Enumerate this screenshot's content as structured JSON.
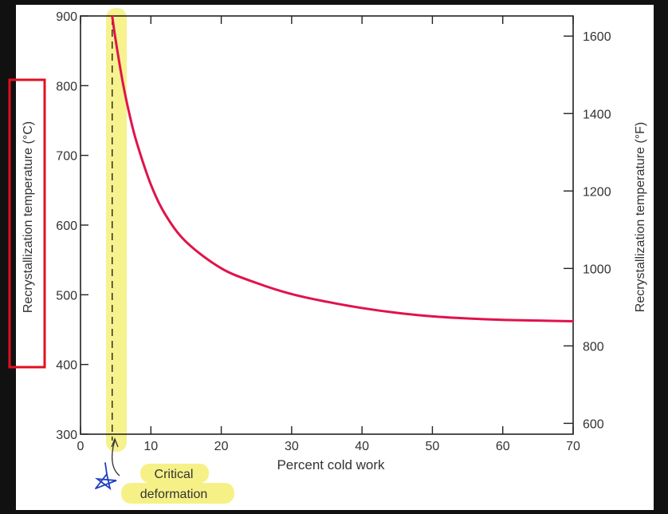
{
  "chart_data": {
    "type": "line",
    "xlabel": "Percent cold work",
    "ylabel": "Recrystallization temperature (°C)",
    "ylabel_right": "Recrystallization temperature (°F)",
    "xlim": [
      0,
      70
    ],
    "ylim": [
      300,
      900
    ],
    "ylim_right": [
      572,
      1652
    ],
    "x_ticks": [
      "0",
      "10",
      "20",
      "30",
      "40",
      "50",
      "60",
      "70"
    ],
    "y_ticks": [
      "300",
      "400",
      "500",
      "600",
      "700",
      "800",
      "900"
    ],
    "y_ticks_right": [
      "600",
      "800",
      "1000",
      "1200",
      "1400",
      "1600"
    ],
    "series": [
      {
        "x": [
          4.5,
          5,
          6,
          7,
          8,
          10,
          12,
          15,
          20,
          25,
          30,
          35,
          40,
          45,
          50,
          55,
          60,
          65,
          70
        ],
        "y": [
          900,
          865,
          805,
          757,
          718,
          658,
          616,
          576,
          538,
          517,
          501,
          490,
          481,
          474,
          469,
          466,
          464,
          463,
          462
        ],
        "color": "#e0134a"
      }
    ],
    "critical_deformation_x": 4.5,
    "grid": false
  },
  "annotations": {
    "critical_label_line1": "Critical",
    "critical_label_line2": "deformation"
  },
  "colors": {
    "highlight": "#f5f07a",
    "box": "#e01020",
    "curve": "#e0134a",
    "pen": "#1f3fbf"
  }
}
